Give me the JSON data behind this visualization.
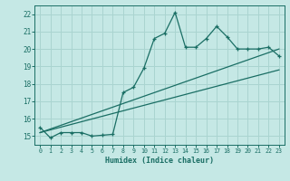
{
  "title": "",
  "xlabel": "Humidex (Indice chaleur)",
  "ylabel": "",
  "bg_color": "#c5e8e5",
  "grid_color": "#aad4d0",
  "line_color": "#1a6e64",
  "xlim": [
    -0.5,
    23.5
  ],
  "ylim": [
    14.5,
    22.5
  ],
  "xticks": [
    0,
    1,
    2,
    3,
    4,
    5,
    6,
    7,
    8,
    9,
    10,
    11,
    12,
    13,
    14,
    15,
    16,
    17,
    18,
    19,
    20,
    21,
    22,
    23
  ],
  "yticks": [
    15,
    16,
    17,
    18,
    19,
    20,
    21,
    22
  ],
  "line1_x": [
    0,
    1,
    2,
    3,
    4,
    5,
    6,
    7,
    8,
    9,
    10,
    11,
    12,
    13,
    14,
    15,
    16,
    17,
    18,
    19,
    20,
    21,
    22,
    23
  ],
  "line1_y": [
    15.5,
    14.9,
    15.2,
    15.2,
    15.2,
    15.0,
    15.05,
    15.1,
    17.5,
    17.8,
    18.9,
    20.6,
    20.9,
    22.1,
    20.1,
    20.1,
    20.6,
    21.3,
    20.7,
    20.0,
    20.0,
    20.0,
    20.1,
    19.6
  ],
  "line2_x": [
    0,
    23
  ],
  "line2_y": [
    15.2,
    20.0
  ],
  "line3_x": [
    0,
    23
  ],
  "line3_y": [
    15.2,
    18.8
  ]
}
